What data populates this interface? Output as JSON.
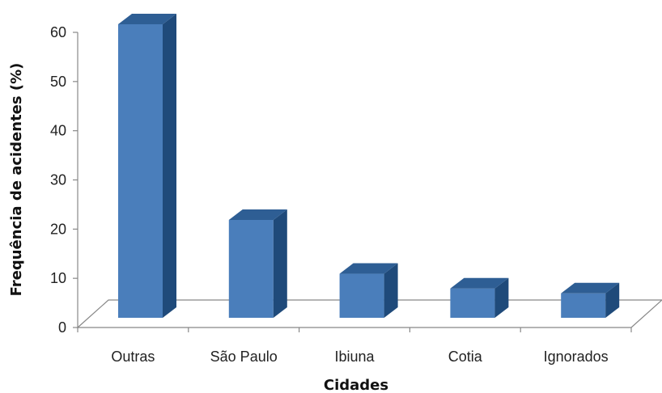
{
  "chart_data": {
    "type": "bar",
    "style": "3d-column",
    "categories": [
      "Outras",
      "São Paulo",
      "Ibiuna",
      "Cotia",
      "Ignorados"
    ],
    "values": [
      60,
      20,
      9,
      6,
      5
    ],
    "xlabel": "Cidades",
    "ylabel": "Frequência de acidentes (%)",
    "ylim": [
      0,
      60
    ],
    "yticks": [
      0,
      10,
      20,
      30,
      40,
      50,
      60
    ],
    "grid": false,
    "legend": "none",
    "colors": {
      "bar_front": "#4A7EBB",
      "bar_side": "#1F4A7A",
      "bar_top": "#2E5E94",
      "axis": "#888888"
    }
  }
}
